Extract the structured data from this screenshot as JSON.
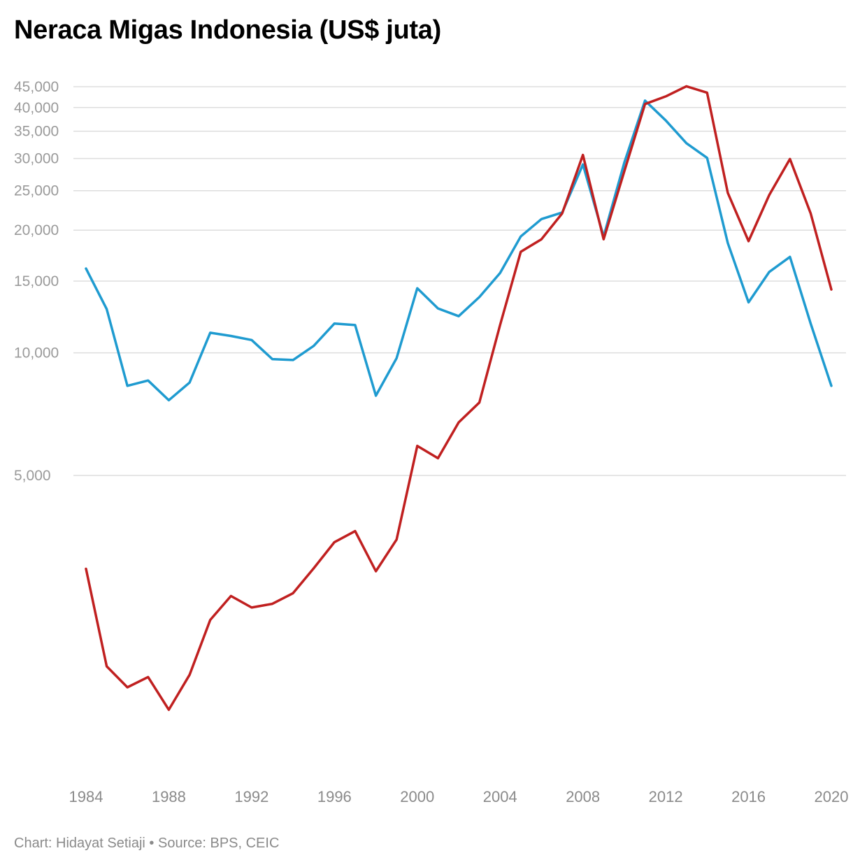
{
  "title": "Neraca Migas Indonesia (US$ juta)",
  "footer": {
    "credit": "Chart: Hidayat Setiaji",
    "separator": " • ",
    "source": "Source: BPS, CEIC"
  },
  "chart_data": {
    "type": "line",
    "scale": "log",
    "grid": true,
    "legend": "none",
    "y_ticks": [
      5000,
      10000,
      15000,
      20000,
      25000,
      30000,
      35000,
      40000,
      45000
    ],
    "y_tick_labels": [
      "5,000",
      "10,000",
      "15,000",
      "20,000",
      "25,000",
      "30,000",
      "35,000",
      "40,000",
      "45,000"
    ],
    "x_ticks": [
      1984,
      1988,
      1992,
      1996,
      2000,
      2004,
      2008,
      2012,
      2016,
      2020
    ],
    "x_tick_labels": [
      "1984",
      "1988",
      "1992",
      "1996",
      "2000",
      "2004",
      "2008",
      "2012",
      "2016",
      "2020"
    ],
    "xlim": [
      1984,
      2020
    ],
    "ylim": [
      1300,
      47000
    ],
    "x": [
      1984,
      1985,
      1986,
      1987,
      1988,
      1989,
      1990,
      1991,
      1992,
      1993,
      1994,
      1995,
      1996,
      1997,
      1998,
      1999,
      2000,
      2001,
      2002,
      2003,
      2004,
      2005,
      2006,
      2007,
      2008,
      2009,
      2010,
      2011,
      2012,
      2013,
      2014,
      2015,
      2016,
      2017,
      2018,
      2019,
      2020
    ],
    "series": [
      {
        "color": "#1f9bd0",
        "values": [
          16100,
          12800,
          8300,
          8550,
          7650,
          8450,
          11200,
          11000,
          10750,
          9650,
          9600,
          10400,
          11800,
          11700,
          7850,
          9700,
          14400,
          12850,
          12300,
          13700,
          15700,
          19300,
          21300,
          22100,
          29000,
          19300,
          29300,
          41600,
          37200,
          32700,
          30100,
          18600,
          13300,
          15800,
          17200,
          11800,
          8300
        ]
      },
      {
        "color": "#c02020",
        "values": [
          2950,
          1700,
          1510,
          1600,
          1330,
          1620,
          2210,
          2530,
          2370,
          2420,
          2570,
          2960,
          3430,
          3650,
          2910,
          3480,
          5910,
          5510,
          6750,
          7550,
          11700,
          17700,
          19000,
          22000,
          30600,
          19000,
          27900,
          40800,
          42600,
          45100,
          43500,
          24700,
          18800,
          24400,
          29900,
          22000,
          14300
        ]
      }
    ]
  }
}
